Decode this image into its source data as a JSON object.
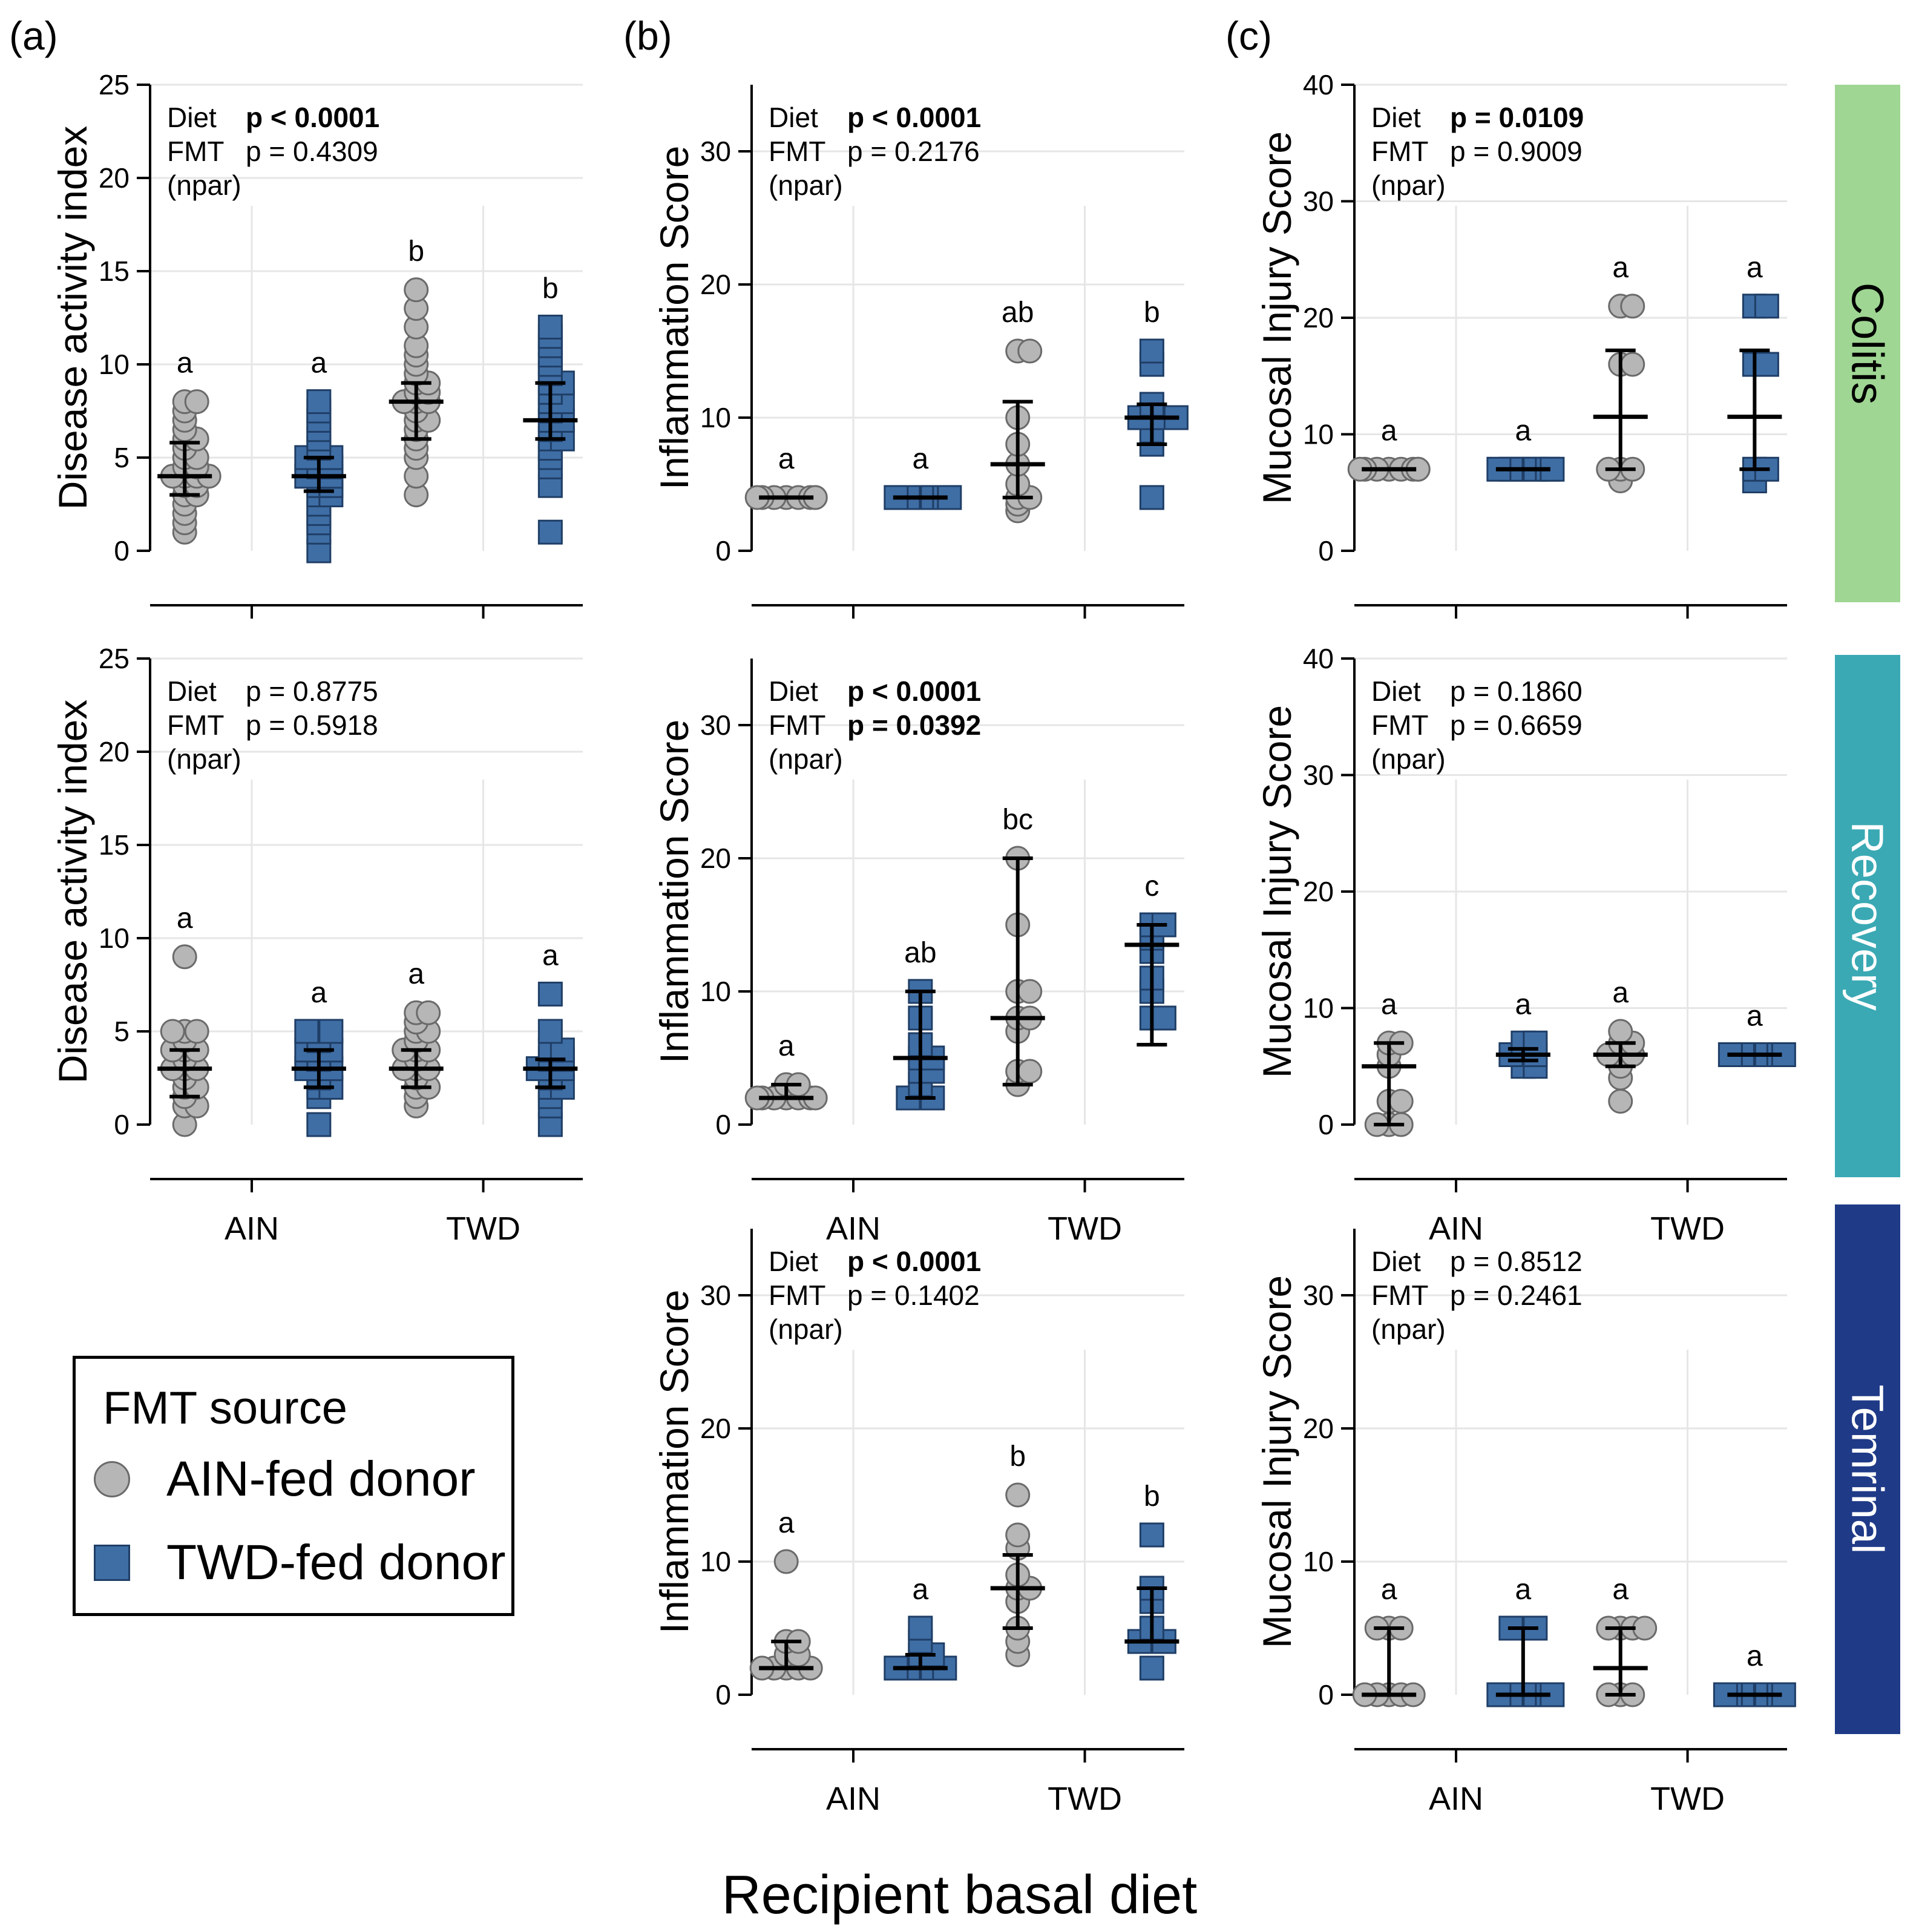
{
  "panel_labels": [
    "(a)",
    "(b)",
    "(c)"
  ],
  "stage_labels": [
    "Colitis",
    "Recovery",
    "Temrinal"
  ],
  "stage_colors": [
    "#9fd693",
    "#3aa9b4",
    "#1f3a87"
  ],
  "x_axis_title": "Recipient basal diet",
  "legend": {
    "title": "FMT source",
    "items": [
      "AIN-fed donor",
      "TWD-fed donor"
    ]
  },
  "colors": {
    "ain": "#b6b6b6",
    "ain_edge": "#6a6a6a",
    "twd": "#3f6ea5",
    "twd_edge": "#1f3e66"
  },
  "chart_data": [
    {
      "id": "a1",
      "type": "scatter",
      "ylabel": "Disease activity index",
      "ylim": [
        0,
        25
      ],
      "yticks": [
        0,
        5,
        10,
        15,
        20,
        25
      ],
      "stats": [
        [
          "Diet",
          "p < 0.0001",
          true
        ],
        [
          "FMT",
          "p = 0.4309",
          false
        ],
        [
          "(npar)",
          "",
          false
        ]
      ],
      "categories": [
        "AIN",
        "TWD"
      ],
      "show_xticks": false,
      "groups": [
        {
          "name": "AIN-fed donor",
          "cat": "AIN",
          "center": 4.0,
          "lo": 3.0,
          "hi": 5.8,
          "letter": "a",
          "values": [
            1,
            1.5,
            2,
            2.5,
            3,
            3,
            3.5,
            3.5,
            4,
            4,
            4,
            4,
            4.5,
            4.5,
            5,
            5,
            5.5,
            6,
            6,
            6.5,
            7,
            7.5,
            8,
            8
          ]
        },
        {
          "name": "TWD-fed donor",
          "cat": "AIN",
          "center": 4.0,
          "lo": 3.2,
          "hi": 5.0,
          "letter": "a",
          "values": [
            0,
            1,
            1.5,
            2,
            2.5,
            3,
            3,
            3.5,
            3.5,
            4,
            4,
            4,
            4.5,
            4.5,
            5,
            5,
            5,
            5.5,
            6,
            6.5,
            7,
            7.5,
            8
          ]
        },
        {
          "name": "AIN-fed donor",
          "cat": "TWD",
          "center": 8.0,
          "lo": 6.0,
          "hi": 9.0,
          "letter": "b",
          "values": [
            3,
            4,
            5,
            5.5,
            6,
            6.5,
            7,
            7,
            7.5,
            8,
            8,
            8,
            8.5,
            8.5,
            9,
            9,
            9.5,
            10,
            10.5,
            11,
            12,
            13,
            14
          ]
        },
        {
          "name": "TWD-fed donor",
          "cat": "TWD",
          "center": 7.0,
          "lo": 6.0,
          "hi": 9.0,
          "letter": "b",
          "values": [
            1,
            3.5,
            4.5,
            5,
            5.5,
            6,
            6,
            6.5,
            7,
            7,
            7.5,
            8,
            8,
            8.5,
            9,
            9,
            9.5,
            10,
            10.5,
            11,
            11.5,
            12
          ]
        }
      ]
    },
    {
      "id": "b1",
      "type": "scatter",
      "ylabel": "Inflammation Score",
      "ylim": [
        0,
        35
      ],
      "yticks": [
        0,
        10,
        20,
        30
      ],
      "stats": [
        [
          "Diet",
          "p < 0.0001",
          true
        ],
        [
          "FMT",
          "p = 0.2176",
          false
        ],
        [
          "(npar)",
          "",
          false
        ]
      ],
      "categories": [
        "AIN",
        "TWD"
      ],
      "show_xticks": false,
      "groups": [
        {
          "name": "AIN-fed donor",
          "cat": "AIN",
          "center": 4,
          "lo": 4,
          "hi": 4,
          "letter": "a",
          "values": [
            4,
            4,
            4,
            4,
            4,
            4,
            4,
            4
          ]
        },
        {
          "name": "TWD-fed donor",
          "cat": "AIN",
          "center": 4,
          "lo": 4,
          "hi": 4,
          "letter": "a",
          "values": [
            4,
            4,
            4,
            4,
            4,
            4
          ]
        },
        {
          "name": "AIN-fed donor",
          "cat": "TWD",
          "center": 6.5,
          "lo": 4,
          "hi": 11.2,
          "letter": "ab",
          "values": [
            3,
            3.5,
            4,
            4,
            5,
            6.5,
            8,
            10,
            15,
            15
          ]
        },
        {
          "name": "TWD-fed donor",
          "cat": "TWD",
          "center": 10,
          "lo": 8,
          "hi": 11,
          "letter": "b",
          "values": [
            4,
            8,
            9,
            10,
            10,
            10,
            10,
            11,
            14,
            15
          ]
        }
      ]
    },
    {
      "id": "c1",
      "type": "scatter",
      "ylabel": "Mucosal Injury Score",
      "ylim": [
        0,
        40
      ],
      "yticks": [
        0,
        10,
        20,
        30,
        40
      ],
      "stats": [
        [
          "Diet",
          "p = 0.0109",
          true
        ],
        [
          "FMT",
          "p = 0.9009",
          false
        ],
        [
          "(npar)",
          "",
          false
        ]
      ],
      "categories": [
        "AIN",
        "TWD"
      ],
      "show_xticks": false,
      "groups": [
        {
          "name": "AIN-fed donor",
          "cat": "AIN",
          "center": 7,
          "lo": 7,
          "hi": 7,
          "letter": "a",
          "values": [
            7,
            7,
            7,
            7,
            7,
            7,
            7,
            7
          ]
        },
        {
          "name": "TWD-fed donor",
          "cat": "AIN",
          "center": 7,
          "lo": 7,
          "hi": 7,
          "letter": "a",
          "values": [
            7,
            7,
            7,
            7,
            7,
            7
          ]
        },
        {
          "name": "AIN-fed donor",
          "cat": "TWD",
          "center": 11.5,
          "lo": 7,
          "hi": 17.2,
          "letter": "a",
          "values": [
            6,
            7,
            7,
            7,
            16,
            16,
            21,
            21
          ]
        },
        {
          "name": "TWD-fed donor",
          "cat": "TWD",
          "center": 11.5,
          "lo": 7,
          "hi": 17.2,
          "letter": "a",
          "values": [
            6,
            7,
            7,
            16,
            16,
            21,
            21
          ]
        }
      ]
    },
    {
      "id": "a2",
      "type": "scatter",
      "ylabel": "Disease activity index",
      "ylim": [
        0,
        25
      ],
      "yticks": [
        0,
        5,
        10,
        15,
        20,
        25
      ],
      "stats": [
        [
          "Diet",
          "p = 0.8775",
          false
        ],
        [
          "FMT",
          "p = 0.5918",
          false
        ],
        [
          "(npar)",
          "",
          false
        ]
      ],
      "categories": [
        "AIN",
        "TWD"
      ],
      "show_xticks": true,
      "groups": [
        {
          "name": "AIN-fed donor",
          "cat": "AIN",
          "center": 3,
          "lo": 1.5,
          "hi": 4,
          "letter": "a",
          "values": [
            0,
            1,
            1,
            1.5,
            2,
            2,
            2.5,
            3,
            3,
            3,
            3.5,
            4,
            4,
            4,
            4.5,
            5,
            5,
            5,
            9
          ]
        },
        {
          "name": "TWD-fed donor",
          "cat": "AIN",
          "center": 3,
          "lo": 2,
          "hi": 4,
          "letter": "a",
          "values": [
            0,
            1.5,
            2,
            2,
            2.5,
            3,
            3,
            3,
            3.5,
            4,
            4,
            4,
            4.5,
            5,
            5,
            5
          ]
        },
        {
          "name": "AIN-fed donor",
          "cat": "TWD",
          "center": 3,
          "lo": 2,
          "hi": 4,
          "letter": "a",
          "values": [
            1,
            1.5,
            2,
            2,
            2.5,
            3,
            3,
            3,
            3.5,
            4,
            4,
            4,
            4.5,
            5,
            5,
            5.5,
            6,
            6
          ]
        },
        {
          "name": "TWD-fed donor",
          "cat": "TWD",
          "center": 3,
          "lo": 2,
          "hi": 3.5,
          "letter": "a",
          "values": [
            0,
            1,
            1.5,
            2,
            2,
            2.5,
            3,
            3,
            3,
            3.5,
            3.5,
            4,
            4,
            5,
            7
          ]
        }
      ]
    },
    {
      "id": "b2",
      "type": "scatter",
      "ylabel": "Inflammation Score",
      "ylim": [
        0,
        35
      ],
      "yticks": [
        0,
        10,
        20,
        30
      ],
      "stats": [
        [
          "Diet",
          "p < 0.0001",
          true
        ],
        [
          "FMT",
          "p = 0.0392",
          true
        ],
        [
          "(npar)",
          "",
          false
        ]
      ],
      "categories": [
        "AIN",
        "TWD"
      ],
      "show_xticks": true,
      "groups": [
        {
          "name": "AIN-fed donor",
          "cat": "AIN",
          "center": 2,
          "lo": 2,
          "hi": 3,
          "letter": "a",
          "values": [
            2,
            2,
            2,
            2,
            2,
            2,
            2,
            3,
            3
          ]
        },
        {
          "name": "TWD-fed donor",
          "cat": "AIN",
          "center": 5,
          "lo": 2,
          "hi": 10,
          "letter": "ab",
          "values": [
            2,
            2,
            2,
            3,
            4,
            4,
            5,
            5,
            6,
            8,
            10
          ]
        },
        {
          "name": "AIN-fed donor",
          "cat": "TWD",
          "center": 8,
          "lo": 3,
          "hi": 20,
          "letter": "bc",
          "values": [
            3,
            4,
            4,
            7,
            8,
            8,
            10,
            10,
            15,
            20
          ]
        },
        {
          "name": "TWD-fed donor",
          "cat": "TWD",
          "center": 13.5,
          "lo": 6,
          "hi": 15,
          "letter": "c",
          "values": [
            8,
            8,
            10,
            11,
            13,
            14,
            15,
            15
          ]
        }
      ]
    },
    {
      "id": "c2",
      "type": "scatter",
      "ylabel": "Mucosal Injury Score",
      "ylim": [
        0,
        40
      ],
      "yticks": [
        0,
        10,
        20,
        30,
        40
      ],
      "stats": [
        [
          "Diet",
          "p = 0.1860",
          false
        ],
        [
          "FMT",
          "p = 0.6659",
          false
        ],
        [
          "(npar)",
          "",
          false
        ]
      ],
      "categories": [
        "AIN",
        "TWD"
      ],
      "show_xticks": true,
      "groups": [
        {
          "name": "AIN-fed donor",
          "cat": "AIN",
          "center": 5,
          "lo": 0,
          "hi": 7,
          "letter": "a",
          "values": [
            0,
            0,
            0,
            2,
            2,
            5,
            6,
            7,
            7
          ]
        },
        {
          "name": "TWD-fed donor",
          "cat": "AIN",
          "center": 6,
          "lo": 5.5,
          "hi": 6.5,
          "letter": "a",
          "values": [
            5,
            5,
            6,
            6,
            6,
            7,
            7
          ]
        },
        {
          "name": "AIN-fed donor",
          "cat": "TWD",
          "center": 6,
          "lo": 5,
          "hi": 7,
          "letter": "a",
          "values": [
            2,
            4,
            5,
            6,
            6,
            6,
            7,
            7,
            8
          ]
        },
        {
          "name": "TWD-fed donor",
          "cat": "TWD",
          "center": 6,
          "lo": 6,
          "hi": 6,
          "letter": "a",
          "values": [
            6,
            6,
            6,
            6,
            6,
            6
          ]
        }
      ]
    },
    {
      "id": "b3",
      "type": "scatter",
      "ylabel": "Inflammation Score",
      "ylim": [
        0,
        35
      ],
      "yticks": [
        0,
        10,
        20,
        30
      ],
      "stats": [
        [
          "Diet",
          "p < 0.0001",
          true
        ],
        [
          "FMT",
          "p = 0.1402",
          false
        ],
        [
          "(npar)",
          "",
          false
        ]
      ],
      "categories": [
        "AIN",
        "TWD"
      ],
      "show_xticks": true,
      "groups": [
        {
          "name": "AIN-fed donor",
          "cat": "AIN",
          "center": 2,
          "lo": 2,
          "hi": 4,
          "letter": "a",
          "values": [
            2,
            2,
            2,
            2,
            2,
            3,
            3,
            4,
            4,
            10
          ]
        },
        {
          "name": "TWD-fed donor",
          "cat": "AIN",
          "center": 2,
          "lo": 2,
          "hi": 3,
          "letter": "a",
          "values": [
            2,
            2,
            2,
            2,
            2,
            3,
            3,
            4,
            5
          ]
        },
        {
          "name": "AIN-fed donor",
          "cat": "TWD",
          "center": 8,
          "lo": 5,
          "hi": 10.5,
          "letter": "b",
          "values": [
            3,
            4,
            5,
            7,
            8,
            8,
            9,
            11,
            12,
            15
          ]
        },
        {
          "name": "TWD-fed donor",
          "cat": "TWD",
          "center": 4,
          "lo": 4,
          "hi": 8,
          "letter": "b",
          "values": [
            2,
            4,
            4,
            4,
            5,
            7,
            8,
            12
          ]
        }
      ]
    },
    {
      "id": "c3",
      "type": "scatter",
      "ylabel": "Mucosal Injury Score",
      "ylim": [
        0,
        35
      ],
      "yticks": [
        0,
        10,
        20,
        30
      ],
      "stats": [
        [
          "Diet",
          "p = 0.8512",
          false
        ],
        [
          "FMT",
          "p = 0.2461",
          false
        ],
        [
          "(npar)",
          "",
          false
        ]
      ],
      "categories": [
        "AIN",
        "TWD"
      ],
      "show_xticks": true,
      "groups": [
        {
          "name": "AIN-fed donor",
          "cat": "AIN",
          "center": 0,
          "lo": 0,
          "hi": 5,
          "letter": "a",
          "values": [
            0,
            0,
            0,
            0,
            0,
            5,
            5,
            5
          ]
        },
        {
          "name": "TWD-fed donor",
          "cat": "AIN",
          "center": 0,
          "lo": 0,
          "hi": 5,
          "letter": "a",
          "values": [
            0,
            0,
            0,
            0,
            0,
            0,
            5,
            5,
            5
          ]
        },
        {
          "name": "AIN-fed donor",
          "cat": "TWD",
          "center": 2,
          "lo": 0,
          "hi": 5,
          "letter": "a",
          "values": [
            0,
            0,
            0,
            5,
            5,
            5,
            5
          ]
        },
        {
          "name": "TWD-fed donor",
          "cat": "TWD",
          "center": 0,
          "lo": 0,
          "hi": 0,
          "letter": "a",
          "values": [
            0,
            0,
            0,
            0,
            0,
            0,
            0
          ]
        }
      ]
    }
  ]
}
